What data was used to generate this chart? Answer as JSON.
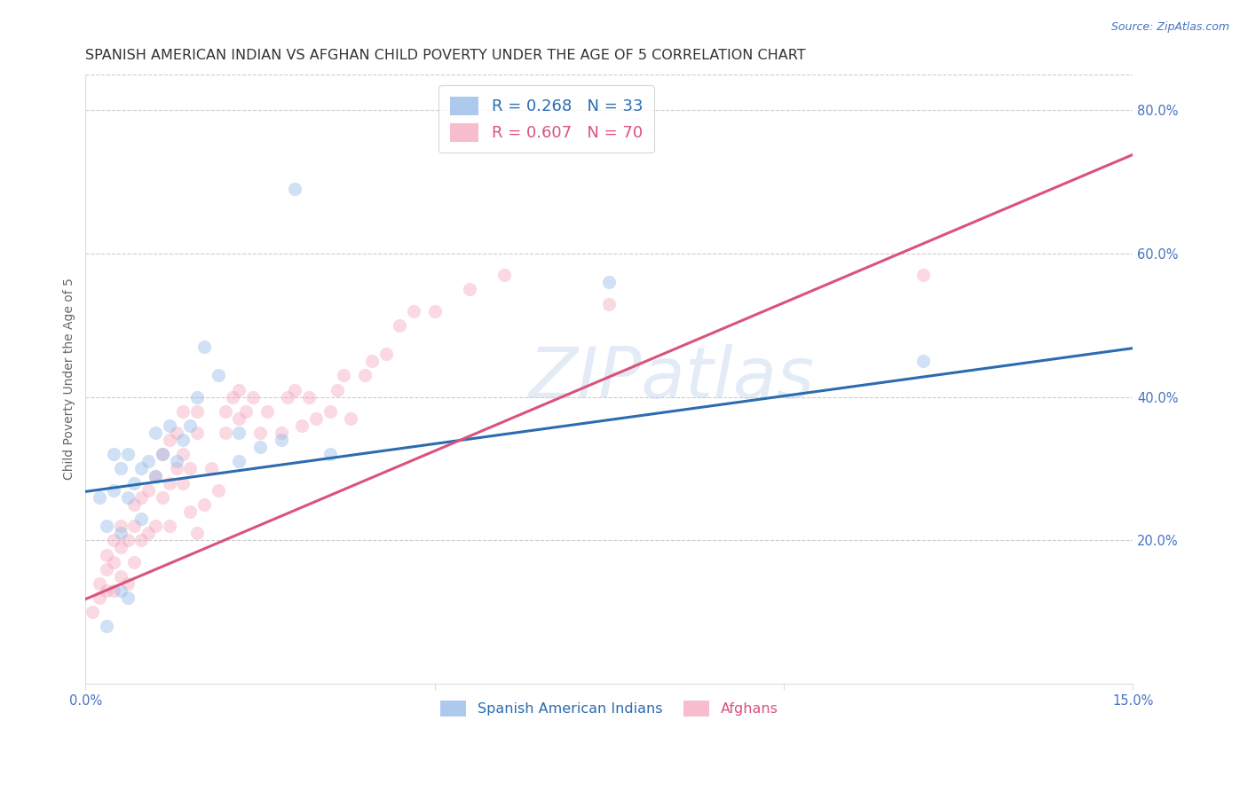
{
  "title": "SPANISH AMERICAN INDIAN VS AFGHAN CHILD POVERTY UNDER THE AGE OF 5 CORRELATION CHART",
  "source": "Source: ZipAtlas.com",
  "ylabel": "Child Poverty Under the Age of 5",
  "xlim": [
    0.0,
    0.15
  ],
  "ylim": [
    0.0,
    0.85
  ],
  "xticks": [
    0.0,
    0.05,
    0.1,
    0.15
  ],
  "xtick_labels": [
    "0.0%",
    "",
    "",
    "15.0%"
  ],
  "ytick_labels_right": [
    "20.0%",
    "40.0%",
    "60.0%",
    "80.0%"
  ],
  "yticks_right": [
    0.2,
    0.4,
    0.6,
    0.8
  ],
  "legend_line1": "R = 0.268   N = 33",
  "legend_line2": "R = 0.607   N = 70",
  "legend_labels_bottom": [
    "Spanish American Indians",
    "Afghans"
  ],
  "watermark": "ZIPatlas",
  "blue_color": "#8ab4e8",
  "pink_color": "#f4a0b8",
  "blue_line_color": "#2b6cb0",
  "pink_line_color": "#d9537a",
  "blue_scatter": {
    "x": [
      0.002,
      0.003,
      0.004,
      0.004,
      0.005,
      0.005,
      0.006,
      0.006,
      0.007,
      0.008,
      0.008,
      0.009,
      0.01,
      0.01,
      0.011,
      0.012,
      0.013,
      0.014,
      0.015,
      0.016,
      0.017,
      0.019,
      0.022,
      0.022,
      0.025,
      0.028,
      0.03,
      0.035,
      0.075,
      0.12,
      0.003,
      0.005,
      0.006
    ],
    "y": [
      0.26,
      0.22,
      0.27,
      0.32,
      0.3,
      0.21,
      0.32,
      0.26,
      0.28,
      0.3,
      0.23,
      0.31,
      0.29,
      0.35,
      0.32,
      0.36,
      0.31,
      0.34,
      0.36,
      0.4,
      0.47,
      0.43,
      0.35,
      0.31,
      0.33,
      0.34,
      0.69,
      0.32,
      0.56,
      0.45,
      0.08,
      0.13,
      0.12
    ]
  },
  "pink_scatter": {
    "x": [
      0.001,
      0.002,
      0.002,
      0.003,
      0.003,
      0.003,
      0.004,
      0.004,
      0.004,
      0.005,
      0.005,
      0.005,
      0.006,
      0.006,
      0.007,
      0.007,
      0.007,
      0.008,
      0.008,
      0.009,
      0.009,
      0.01,
      0.01,
      0.011,
      0.011,
      0.012,
      0.012,
      0.012,
      0.013,
      0.013,
      0.014,
      0.014,
      0.014,
      0.015,
      0.015,
      0.016,
      0.016,
      0.016,
      0.017,
      0.018,
      0.019,
      0.02,
      0.02,
      0.021,
      0.022,
      0.022,
      0.023,
      0.024,
      0.025,
      0.026,
      0.028,
      0.029,
      0.03,
      0.031,
      0.032,
      0.033,
      0.035,
      0.036,
      0.037,
      0.038,
      0.04,
      0.041,
      0.043,
      0.045,
      0.047,
      0.05,
      0.055,
      0.06,
      0.075,
      0.12
    ],
    "y": [
      0.1,
      0.12,
      0.14,
      0.13,
      0.16,
      0.18,
      0.13,
      0.17,
      0.2,
      0.15,
      0.19,
      0.22,
      0.14,
      0.2,
      0.17,
      0.22,
      0.25,
      0.2,
      0.26,
      0.21,
      0.27,
      0.22,
      0.29,
      0.26,
      0.32,
      0.22,
      0.28,
      0.34,
      0.3,
      0.35,
      0.28,
      0.32,
      0.38,
      0.24,
      0.3,
      0.35,
      0.21,
      0.38,
      0.25,
      0.3,
      0.27,
      0.35,
      0.38,
      0.4,
      0.37,
      0.41,
      0.38,
      0.4,
      0.35,
      0.38,
      0.35,
      0.4,
      0.41,
      0.36,
      0.4,
      0.37,
      0.38,
      0.41,
      0.43,
      0.37,
      0.43,
      0.45,
      0.46,
      0.5,
      0.52,
      0.52,
      0.55,
      0.57,
      0.53,
      0.57
    ]
  },
  "blue_line": {
    "x0": 0.0,
    "x1": 0.15,
    "y0": 0.268,
    "y1": 0.468
  },
  "pink_line": {
    "x0": 0.0,
    "x1": 0.15,
    "y0": 0.118,
    "y1": 0.738
  },
  "background_color": "#ffffff",
  "grid_color": "#cccccc",
  "title_color": "#333333",
  "axis_label_color": "#666666",
  "tick_label_color": "#4472c4",
  "marker_size": 120,
  "marker_alpha": 0.4,
  "title_fontsize": 11.5,
  "axis_label_fontsize": 10,
  "tick_fontsize": 10.5,
  "legend_fontsize": 13
}
